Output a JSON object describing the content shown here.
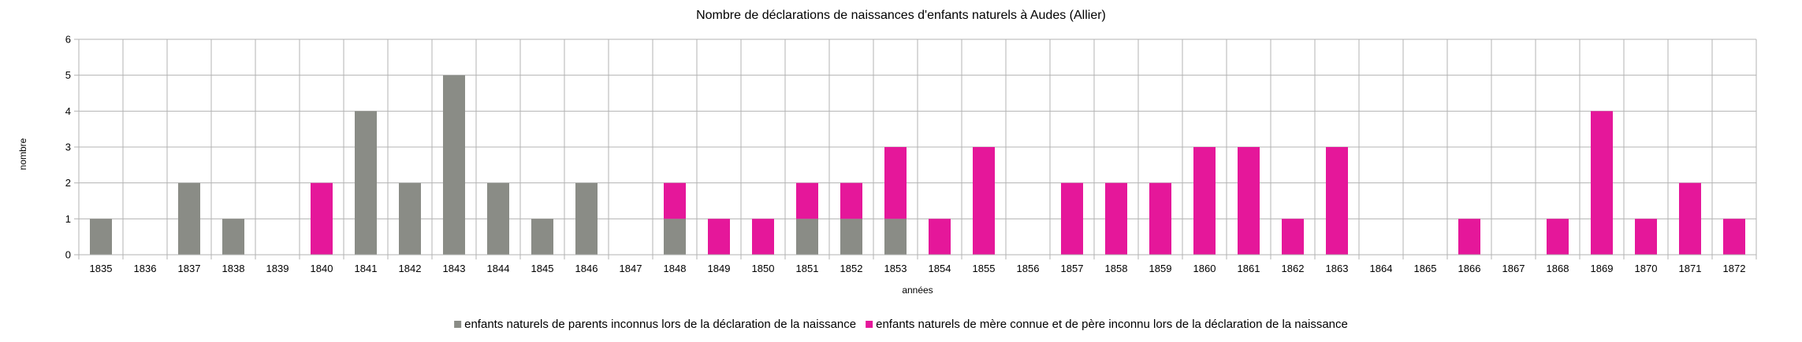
{
  "chart_data": {
    "type": "bar",
    "stacked": true,
    "title": "Nombre de déclarations de naissances d'enfants naturels à Audes (Allier)",
    "xlabel": "années",
    "ylabel": "nombre",
    "ylim": [
      0,
      6
    ],
    "yticks": [
      "0",
      "1",
      "2",
      "3",
      "4",
      "5",
      "6"
    ],
    "grid": true,
    "legend_position": "bottom",
    "categories": [
      "1835",
      "1836",
      "1837",
      "1838",
      "1839",
      "1840",
      "1841",
      "1842",
      "1843",
      "1844",
      "1845",
      "1846",
      "1847",
      "1848",
      "1849",
      "1850",
      "1851",
      "1852",
      "1853",
      "1854",
      "1855",
      "1856",
      "1857",
      "1858",
      "1859",
      "1860",
      "1861",
      "1862",
      "1863",
      "1864",
      "1865",
      "1866",
      "1867",
      "1868",
      "1869",
      "1870",
      "1871",
      "1872"
    ],
    "series": [
      {
        "name": "enfants naturels de parents inconnus lors de la déclaration de la naissance",
        "color": "#8a8c86",
        "values": [
          1,
          0,
          2,
          1,
          0,
          0,
          4,
          2,
          5,
          2,
          1,
          2,
          0,
          1,
          0,
          0,
          1,
          1,
          1,
          0,
          0,
          0,
          0,
          0,
          0,
          0,
          0,
          0,
          0,
          0,
          0,
          0,
          0,
          0,
          0,
          0,
          0,
          0
        ]
      },
      {
        "name": "enfants naturels de mère connue et de père inconnu lors de la déclaration de la naissance",
        "color": "#e5179a",
        "values": [
          0,
          0,
          0,
          0,
          0,
          2,
          0,
          0,
          0,
          0,
          0,
          0,
          0,
          1,
          1,
          1,
          1,
          1,
          2,
          1,
          3,
          0,
          2,
          2,
          2,
          3,
          3,
          1,
          3,
          0,
          0,
          1,
          0,
          1,
          4,
          1,
          2,
          1
        ]
      }
    ]
  }
}
